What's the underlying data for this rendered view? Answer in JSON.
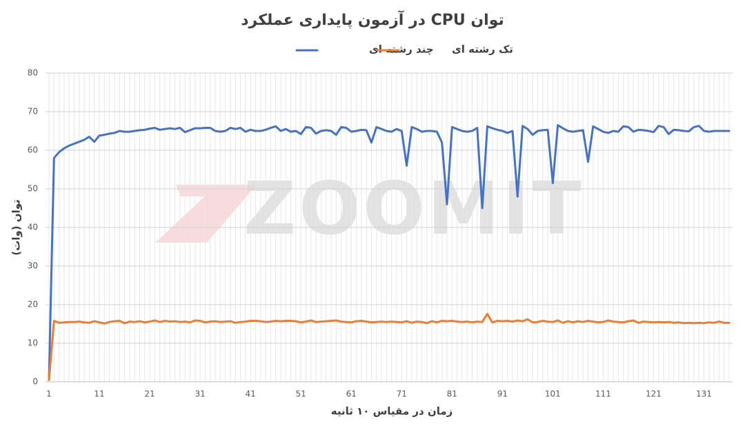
{
  "chart_data": {
    "type": "line",
    "title": "توان CPU در آزمون پایداری عملکرد",
    "xlabel": "زمان در مقیاس ۱۰ ثانیه",
    "ylabel": "توان (وات)",
    "watermark": "ZOOMIT",
    "x": [
      1,
      2,
      3,
      4,
      5,
      6,
      7,
      8,
      9,
      10,
      11,
      12,
      13,
      14,
      15,
      16,
      17,
      18,
      19,
      20,
      21,
      22,
      23,
      24,
      25,
      26,
      27,
      28,
      29,
      30,
      31,
      32,
      33,
      34,
      35,
      36,
      37,
      38,
      39,
      40,
      41,
      42,
      43,
      44,
      45,
      46,
      47,
      48,
      49,
      50,
      51,
      52,
      53,
      54,
      55,
      56,
      57,
      58,
      59,
      60,
      61,
      62,
      63,
      64,
      65,
      66,
      67,
      68,
      69,
      70,
      71,
      72,
      73,
      74,
      75,
      76,
      77,
      78,
      79,
      80,
      81,
      82,
      83,
      84,
      85,
      86,
      87,
      88,
      89,
      90,
      91,
      92,
      93,
      94,
      95,
      96,
      97,
      98,
      99,
      100,
      101,
      102,
      103,
      104,
      105,
      106,
      107,
      108,
      109,
      110,
      111,
      112,
      113,
      114,
      115,
      116,
      117,
      118,
      119,
      120,
      121,
      122,
      123,
      124,
      125,
      126,
      127,
      128,
      129,
      130,
      131,
      132,
      133,
      134,
      135,
      136
    ],
    "xlim": [
      1,
      136
    ],
    "xticks": [
      1,
      11,
      21,
      31,
      41,
      51,
      61,
      71,
      81,
      91,
      101,
      111,
      121,
      131
    ],
    "ylim": [
      0,
      80
    ],
    "yticks": [
      0,
      10,
      20,
      30,
      40,
      50,
      60,
      70,
      80
    ],
    "grid": true,
    "legend": "top",
    "series": [
      {
        "name": "چند رشته ای",
        "color": "#4472c4",
        "values": [
          0.5,
          58,
          59.5,
          60.5,
          61.2,
          61.7,
          62.2,
          62.7,
          63.5,
          62.2,
          63.8,
          64,
          64.3,
          64.5,
          65,
          64.8,
          64.8,
          65,
          65.2,
          65.3,
          65.6,
          65.8,
          65.3,
          65.5,
          65.7,
          65.5,
          65.8,
          64.7,
          65.2,
          65.7,
          65.7,
          65.8,
          65.8,
          65,
          64.8,
          65,
          65.8,
          65.5,
          65.8,
          64.8,
          65.3,
          65,
          65,
          65.3,
          65.8,
          66.2,
          65,
          65.5,
          64.8,
          65,
          64.2,
          66,
          65.8,
          64.3,
          65,
          65.2,
          65,
          64,
          66,
          65.8,
          64.8,
          65,
          65.3,
          65.2,
          62,
          66,
          65.5,
          65,
          64.8,
          65.5,
          65,
          56,
          66,
          65.5,
          64.8,
          65,
          65,
          64.8,
          62,
          46,
          66,
          65.5,
          65,
          64.8,
          65,
          65.8,
          45,
          66.2,
          65.7,
          65.3,
          65,
          64.5,
          65,
          48,
          66.3,
          65.5,
          64,
          65,
          65.2,
          65.3,
          51.5,
          66.5,
          65.7,
          65,
          64.8,
          65,
          65.2,
          57,
          66.2,
          65.5,
          64.8,
          64.5,
          65,
          64.8,
          66.2,
          66,
          64.8,
          65.3,
          65.2,
          65,
          64.7,
          66.3,
          66,
          64.2,
          65.3,
          65.2,
          65,
          64.9,
          66,
          66.3,
          65,
          64.8,
          65,
          65,
          65,
          65
        ]
      },
      {
        "name": "تک رشته ای",
        "color": "#ed7d31",
        "values": [
          0.5,
          15.8,
          15.3,
          15.4,
          15.5,
          15.5,
          15.6,
          15.4,
          15.3,
          15.7,
          15.4,
          15.1,
          15.5,
          15.7,
          15.8,
          15.2,
          15.6,
          15.5,
          15.7,
          15.4,
          15.6,
          15.9,
          15.5,
          15.8,
          15.6,
          15.7,
          15.5,
          15.6,
          15.4,
          15.9,
          15.8,
          15.4,
          15.6,
          15.7,
          15.5,
          15.6,
          15.7,
          15.3,
          15.5,
          15.6,
          15.8,
          15.8,
          15.7,
          15.5,
          15.6,
          15.8,
          15.7,
          15.8,
          15.8,
          15.7,
          15.4,
          15.6,
          15.9,
          15.5,
          15.6,
          15.7,
          15.8,
          15.9,
          15.6,
          15.5,
          15.4,
          15.7,
          15.8,
          15.6,
          15.4,
          15.5,
          15.6,
          15.5,
          15.6,
          15.5,
          15.4,
          15.7,
          15.3,
          15.6,
          15.5,
          15.2,
          15.7,
          15.4,
          15.8,
          15.7,
          15.8,
          15.6,
          15.5,
          15.6,
          15.4,
          15.6,
          15.5,
          17.6,
          15.4,
          15.8,
          15.7,
          15.8,
          15.6,
          15.9,
          15.7,
          16.2,
          15.4,
          15.5,
          15.8,
          15.6,
          15.5,
          15.9,
          15.3,
          15.7,
          15.4,
          15.7,
          15.5,
          15.8,
          15.6,
          15.4,
          15.5,
          15.9,
          15.6,
          15.5,
          15.4,
          15.7,
          15.9,
          15.3,
          15.6,
          15.5,
          15.4,
          15.5,
          15.4,
          15.5,
          15.3,
          15.4,
          15.2,
          15.3,
          15.2,
          15.3,
          15.2,
          15.4,
          15.3,
          15.6,
          15.3,
          15.3
        ]
      }
    ]
  }
}
